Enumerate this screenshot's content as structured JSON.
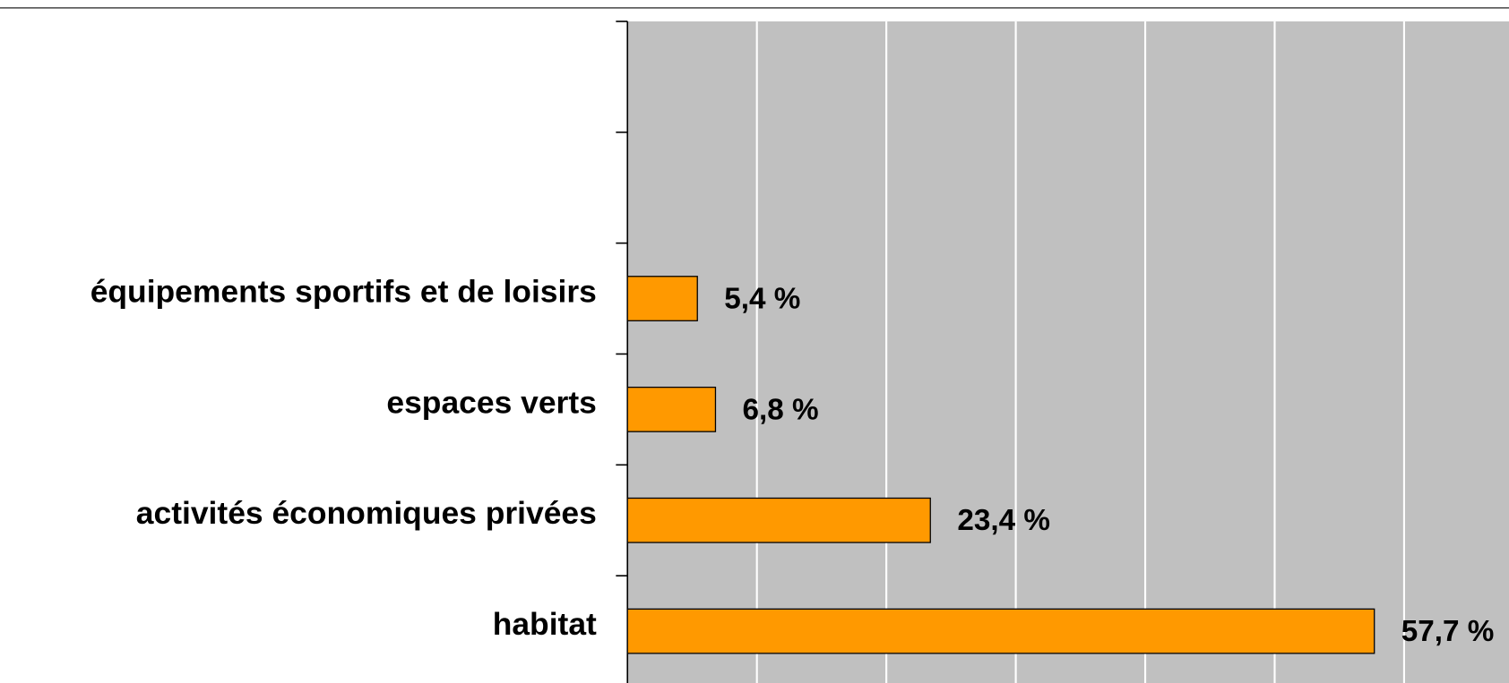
{
  "chart_data": {
    "type": "bar",
    "orientation": "horizontal",
    "categories": [
      null,
      null,
      "équipements sportifs et de loisirs",
      "espaces verts",
      "activités économiques privées",
      "habitat"
    ],
    "values": [
      null,
      null,
      5.4,
      6.8,
      23.4,
      57.7
    ],
    "value_labels": [
      null,
      null,
      "5,4 %",
      "6,8 %",
      "23,4 %",
      "57,7 %"
    ],
    "color": "#ff9900",
    "xlim": [
      0,
      68
    ],
    "xticks": [
      0,
      10,
      20,
      30,
      40,
      50,
      60
    ],
    "grid": true
  }
}
